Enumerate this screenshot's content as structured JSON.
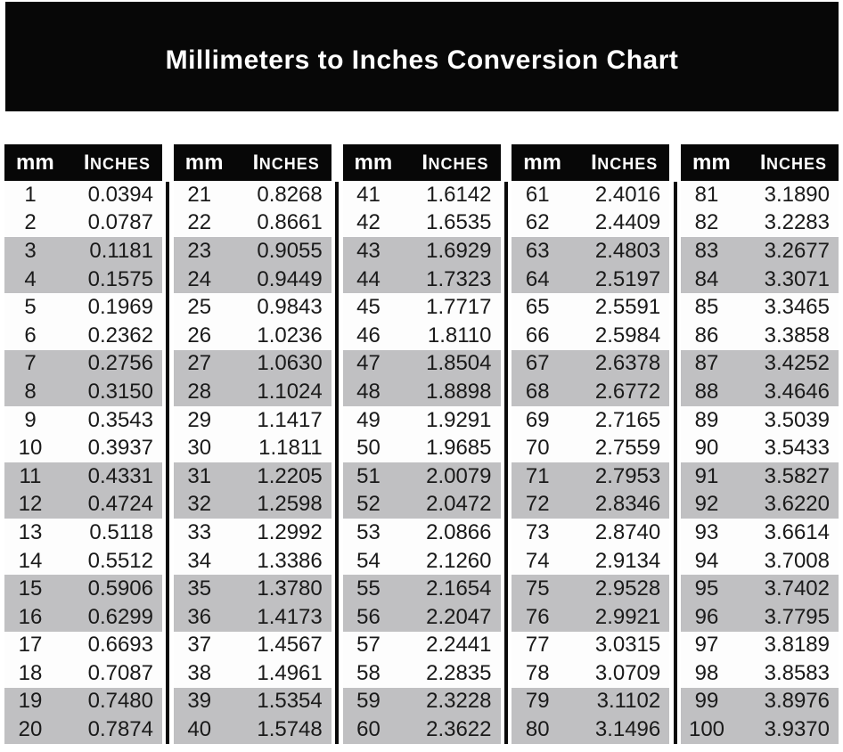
{
  "title": "Millimeters to Inches Conversion Chart",
  "colors": {
    "title_bar_bg": "#070707",
    "title_text": "#ffffff",
    "header_bg": "#070707",
    "header_text": "#ffffff",
    "stripe_gray": "#c0c0c2",
    "row_white": "#fdfdfd",
    "data_text": "#1a1a1a",
    "divider": "#0a0a0a",
    "page_bg": "#ffffff"
  },
  "chart_data": {
    "type": "table",
    "title": "Millimeters to Inches Conversion Chart",
    "column_headers": [
      "mm",
      "Inches"
    ],
    "layout": {
      "column_groups": 5,
      "rows_per_group": 20,
      "stripe_pattern": "alternating pairs: rows 1-2 white, 3-4 gray, repeating",
      "dividers": "vertical black bars between column groups below header"
    },
    "groups": [
      {
        "rows": [
          [
            "1",
            "0.0394"
          ],
          [
            "2",
            "0.0787"
          ],
          [
            "3",
            "0.1181"
          ],
          [
            "4",
            "0.1575"
          ],
          [
            "5",
            "0.1969"
          ],
          [
            "6",
            "0.2362"
          ],
          [
            "7",
            "0.2756"
          ],
          [
            "8",
            "0.3150"
          ],
          [
            "9",
            "0.3543"
          ],
          [
            "10",
            "0.3937"
          ],
          [
            "11",
            "0.4331"
          ],
          [
            "12",
            "0.4724"
          ],
          [
            "13",
            "0.5118"
          ],
          [
            "14",
            "0.5512"
          ],
          [
            "15",
            "0.5906"
          ],
          [
            "16",
            "0.6299"
          ],
          [
            "17",
            "0.6693"
          ],
          [
            "18",
            "0.7087"
          ],
          [
            "19",
            "0.7480"
          ],
          [
            "20",
            "0.7874"
          ]
        ]
      },
      {
        "rows": [
          [
            "21",
            "0.8268"
          ],
          [
            "22",
            "0.8661"
          ],
          [
            "23",
            "0.9055"
          ],
          [
            "24",
            "0.9449"
          ],
          [
            "25",
            "0.9843"
          ],
          [
            "26",
            "1.0236"
          ],
          [
            "27",
            "1.0630"
          ],
          [
            "28",
            "1.1024"
          ],
          [
            "29",
            "1.1417"
          ],
          [
            "30",
            "1.1811"
          ],
          [
            "31",
            "1.2205"
          ],
          [
            "32",
            "1.2598"
          ],
          [
            "33",
            "1.2992"
          ],
          [
            "34",
            "1.3386"
          ],
          [
            "35",
            "1.3780"
          ],
          [
            "36",
            "1.4173"
          ],
          [
            "37",
            "1.4567"
          ],
          [
            "38",
            "1.4961"
          ],
          [
            "39",
            "1.5354"
          ],
          [
            "40",
            "1.5748"
          ]
        ]
      },
      {
        "rows": [
          [
            "41",
            "1.6142"
          ],
          [
            "42",
            "1.6535"
          ],
          [
            "43",
            "1.6929"
          ],
          [
            "44",
            "1.7323"
          ],
          [
            "45",
            "1.7717"
          ],
          [
            "46",
            "1.8110"
          ],
          [
            "47",
            "1.8504"
          ],
          [
            "48",
            "1.8898"
          ],
          [
            "49",
            "1.9291"
          ],
          [
            "50",
            "1.9685"
          ],
          [
            "51",
            "2.0079"
          ],
          [
            "52",
            "2.0472"
          ],
          [
            "53",
            "2.0866"
          ],
          [
            "54",
            "2.1260"
          ],
          [
            "55",
            "2.1654"
          ],
          [
            "56",
            "2.2047"
          ],
          [
            "57",
            "2.2441"
          ],
          [
            "58",
            "2.2835"
          ],
          [
            "59",
            "2.3228"
          ],
          [
            "60",
            "2.3622"
          ]
        ]
      },
      {
        "rows": [
          [
            "61",
            "2.4016"
          ],
          [
            "62",
            "2.4409"
          ],
          [
            "63",
            "2.4803"
          ],
          [
            "64",
            "2.5197"
          ],
          [
            "65",
            "2.5591"
          ],
          [
            "66",
            "2.5984"
          ],
          [
            "67",
            "2.6378"
          ],
          [
            "68",
            "2.6772"
          ],
          [
            "69",
            "2.7165"
          ],
          [
            "70",
            "2.7559"
          ],
          [
            "71",
            "2.7953"
          ],
          [
            "72",
            "2.8346"
          ],
          [
            "73",
            "2.8740"
          ],
          [
            "74",
            "2.9134"
          ],
          [
            "75",
            "2.9528"
          ],
          [
            "76",
            "2.9921"
          ],
          [
            "77",
            "3.0315"
          ],
          [
            "78",
            "3.0709"
          ],
          [
            "79",
            "3.1102"
          ],
          [
            "80",
            "3.1496"
          ]
        ]
      },
      {
        "rows": [
          [
            "81",
            "3.1890"
          ],
          [
            "82",
            "3.2283"
          ],
          [
            "83",
            "3.2677"
          ],
          [
            "84",
            "3.3071"
          ],
          [
            "85",
            "3.3465"
          ],
          [
            "86",
            "3.3858"
          ],
          [
            "87",
            "3.4252"
          ],
          [
            "88",
            "3.4646"
          ],
          [
            "89",
            "3.5039"
          ],
          [
            "90",
            "3.5433"
          ],
          [
            "91",
            "3.5827"
          ],
          [
            "92",
            "3.6220"
          ],
          [
            "93",
            "3.6614"
          ],
          [
            "94",
            "3.7008"
          ],
          [
            "95",
            "3.7402"
          ],
          [
            "96",
            "3.7795"
          ],
          [
            "97",
            "3.8189"
          ],
          [
            "98",
            "3.8583"
          ],
          [
            "99",
            "3.8976"
          ],
          [
            "100",
            "3.9370"
          ]
        ]
      }
    ]
  }
}
